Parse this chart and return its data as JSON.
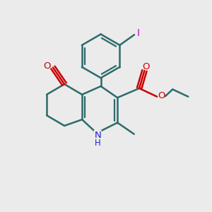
{
  "bg_color": "#ebebeb",
  "bond_color": "#2d6b6b",
  "bond_width": 1.8,
  "atom_colors": {
    "O": "#cc0000",
    "N": "#2222cc",
    "I": "#cc00cc"
  },
  "figsize": [
    3.0,
    3.0
  ],
  "dpi": 100,
  "xlim": [
    0,
    10
  ],
  "ylim": [
    0,
    10
  ]
}
